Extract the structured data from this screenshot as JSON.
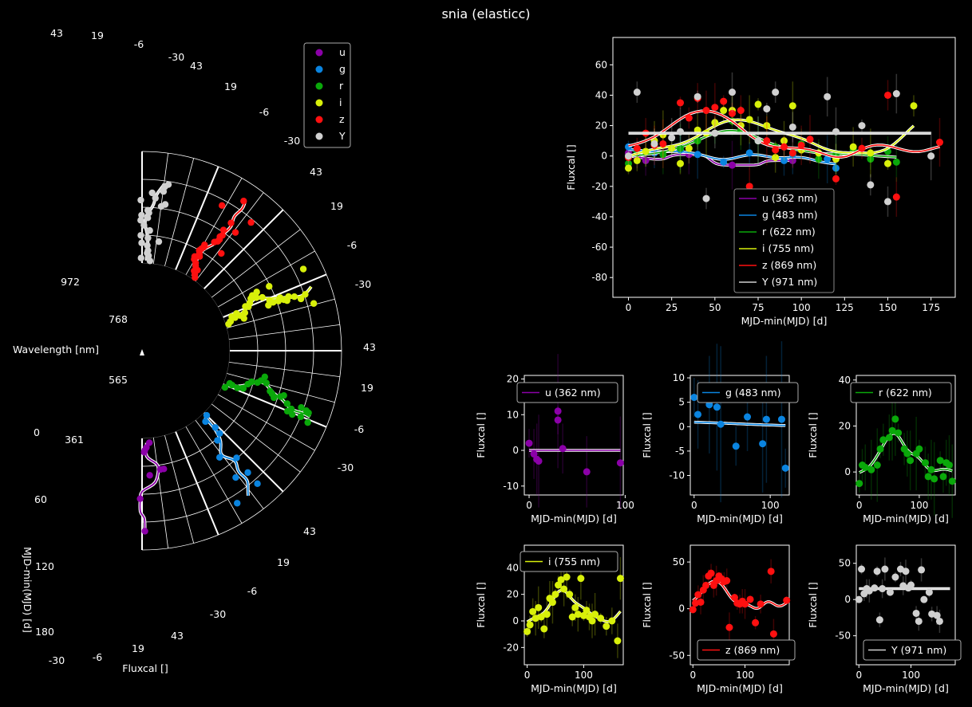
{
  "title": "snia (elasticc)",
  "colors": {
    "u": "#8b00a8",
    "g": "#0a84e0",
    "r": "#0aa80a",
    "i": "#d8f00a",
    "z": "#ff1010",
    "Y": "#d0d0d0"
  },
  "polar": {
    "band_center_labels": [
      "361",
      "565",
      "768",
      "972"
    ],
    "wavelength_label": "Wavelength [nm]",
    "time_label": "MJD-min(MJD) [d]",
    "time_ticks": [
      "0",
      "60",
      "120",
      "180"
    ],
    "flux_label": "Fluxcal []",
    "flux_ticks": [
      "43",
      "19",
      "-6",
      "-30"
    ],
    "legend": [
      "u",
      "g",
      "r",
      "i",
      "z",
      "Y"
    ]
  },
  "chart_data": [
    {
      "type": "scatter",
      "name": "combined",
      "xlabel": "MJD-min(MJD) [d]",
      "ylabel": "Fluxcal []",
      "xlim": [
        -9,
        189
      ],
      "ylim": [
        -93,
        78
      ],
      "xticks": [
        0,
        25,
        50,
        75,
        100,
        125,
        150,
        175
      ],
      "yticks": [
        -80,
        -60,
        -40,
        -20,
        0,
        20,
        40,
        60
      ],
      "legend": [
        "u (362 nm)",
        "g (483 nm)",
        "r (622 nm)",
        "i (755 nm)",
        "z (869 nm)",
        "Y (971 nm)"
      ],
      "series": [
        {
          "band": "u",
          "x": [
            0,
            5,
            10,
            35,
            60,
            95
          ],
          "y": [
            2,
            -1,
            -3,
            1,
            -6,
            -3
          ]
        },
        {
          "band": "g",
          "x": [
            0,
            5,
            15,
            30,
            40,
            55,
            70,
            90,
            95,
            115,
            120
          ],
          "y": [
            6,
            3,
            2,
            4,
            1,
            -4,
            2,
            -3,
            1,
            -2,
            -8
          ]
        },
        {
          "band": "r",
          "x": [
            0,
            5,
            10,
            20,
            30,
            40,
            50,
            60,
            65,
            75,
            85,
            95,
            100,
            110,
            120,
            130,
            140,
            150,
            155
          ],
          "y": [
            -5,
            2,
            3,
            1,
            5,
            10,
            15,
            23,
            17,
            10,
            6,
            2,
            8,
            -2,
            1,
            4,
            -2,
            3,
            -4
          ]
        },
        {
          "band": "i",
          "x": [
            0,
            5,
            10,
            15,
            20,
            25,
            30,
            35,
            40,
            45,
            50,
            55,
            60,
            65,
            70,
            75,
            80,
            85,
            90,
            95,
            100,
            110,
            120,
            130,
            140,
            150,
            165
          ],
          "y": [
            -8,
            -3,
            3,
            10,
            14,
            5,
            -5,
            5,
            17,
            15,
            22,
            30,
            30,
            20,
            24,
            34,
            20,
            -1,
            10,
            33,
            4,
            2,
            -2,
            6,
            2,
            -5,
            33
          ]
        },
        {
          "band": "z",
          "x": [
            0,
            5,
            10,
            15,
            20,
            30,
            35,
            40,
            45,
            50,
            55,
            60,
            65,
            70,
            80,
            85,
            90,
            95,
            100,
            105,
            120,
            135,
            150,
            155,
            180
          ],
          "y": [
            -1,
            5,
            15,
            7,
            8,
            35,
            25,
            38,
            30,
            32,
            36,
            28,
            30,
            -20,
            10,
            4,
            6,
            2,
            7,
            11,
            -15,
            5,
            40,
            -27,
            9
          ]
        },
        {
          "band": "Y",
          "x": [
            0,
            5,
            15,
            25,
            30,
            40,
            45,
            50,
            60,
            75,
            80,
            85,
            95,
            115,
            120,
            135,
            140,
            150,
            155,
            175
          ],
          "y": [
            0,
            42,
            8,
            12,
            16,
            39,
            -28,
            15,
            42,
            10,
            31,
            42,
            19,
            39,
            16,
            20,
            -19,
            -30,
            41,
            0
          ]
        }
      ]
    },
    {
      "type": "scatter",
      "band": "u",
      "legend": "u (362 nm)",
      "xlabel": "MJD-min(MJD) [d]",
      "ylabel": "Fluxcal []",
      "xlim": [
        -5,
        98
      ],
      "ylim": [
        -12.5,
        21
      ],
      "xticks": [
        0,
        100
      ],
      "yticks": [
        -10,
        0,
        10,
        20
      ],
      "x": [
        0,
        5,
        8,
        10,
        30,
        30,
        35,
        60,
        95
      ],
      "y": [
        2,
        -1,
        -2.5,
        -3,
        11,
        8.5,
        0.5,
        -6,
        -3.5
      ]
    },
    {
      "type": "scatter",
      "band": "g",
      "legend": "g (483 nm)",
      "xlabel": "MJD-min(MJD) [d]",
      "ylabel": "Fluxcal []",
      "xlim": [
        -5,
        125
      ],
      "ylim": [
        -14,
        10.5
      ],
      "xticks": [
        0,
        100
      ],
      "yticks": [
        -10,
        -5,
        0,
        5,
        10
      ],
      "x": [
        0,
        5,
        20,
        30,
        35,
        55,
        70,
        90,
        95,
        115,
        120
      ],
      "y": [
        6,
        2.5,
        4.5,
        4,
        0.5,
        -4,
        2,
        -3.5,
        1.5,
        1.5,
        -8.5
      ]
    },
    {
      "type": "scatter",
      "band": "r",
      "legend": "r (622 nm)",
      "xlabel": "MJD-min(MJD) [d]",
      "ylabel": "Fluxcal []",
      "xlim": [
        -5,
        160
      ],
      "ylim": [
        -10,
        42
      ],
      "xticks": [
        0,
        100
      ],
      "yticks": [
        0,
        20,
        40
      ],
      "x": [
        0,
        5,
        10,
        20,
        30,
        35,
        40,
        50,
        55,
        60,
        65,
        75,
        80,
        85,
        95,
        100,
        110,
        115,
        120,
        125,
        135,
        140,
        145,
        150,
        155
      ],
      "y": [
        -5,
        3,
        2,
        1,
        3,
        10,
        14,
        15,
        18,
        23,
        17,
        10,
        8,
        5,
        8,
        10,
        4,
        -2,
        1,
        -3,
        5,
        -2,
        4,
        3,
        -4
      ]
    },
    {
      "type": "scatter",
      "band": "i",
      "legend": "i (755 nm)",
      "xlabel": "MJD-min(MJD) [d]",
      "ylabel": "Fluxcal []",
      "xlim": [
        -5,
        170
      ],
      "ylim": [
        -33,
        57
      ],
      "xticks": [
        0,
        100
      ],
      "yticks": [
        -20,
        0,
        20,
        40
      ],
      "x": [
        0,
        5,
        10,
        15,
        20,
        25,
        30,
        35,
        40,
        45,
        50,
        55,
        60,
        65,
        70,
        75,
        80,
        85,
        90,
        95,
        100,
        105,
        110,
        115,
        120,
        130,
        140,
        150,
        160,
        165
      ],
      "y": [
        -8,
        -3,
        7,
        2,
        10,
        3,
        -6,
        5,
        17,
        14,
        20,
        27,
        31,
        24,
        33,
        20,
        3,
        10,
        5,
        32,
        4,
        8,
        3,
        0,
        5,
        2,
        -4,
        0,
        -15,
        32
      ]
    },
    {
      "type": "scatter",
      "band": "z",
      "legend": "z (869 nm)",
      "xlabel": "MJD-min(MJD) [d]",
      "ylabel": "Fluxcal []",
      "xlim": [
        -5,
        185
      ],
      "ylim": [
        -60,
        68
      ],
      "xticks": [
        0,
        100
      ],
      "yticks": [
        -50,
        0,
        50
      ],
      "x": [
        0,
        5,
        10,
        15,
        20,
        25,
        30,
        35,
        40,
        45,
        50,
        55,
        60,
        65,
        70,
        80,
        85,
        90,
        95,
        100,
        110,
        120,
        130,
        150,
        155,
        180
      ],
      "y": [
        -1,
        6,
        15,
        7,
        20,
        25,
        35,
        38,
        25,
        30,
        35,
        32,
        29,
        30,
        -20,
        12,
        6,
        5,
        8,
        5,
        10,
        -15,
        5,
        40,
        -27,
        9
      ]
    },
    {
      "type": "scatter",
      "band": "Y",
      "legend": "Y (971 nm)",
      "xlabel": "MJD-min(MJD) [d]",
      "ylabel": "Fluxcal []",
      "xlim": [
        -5,
        185
      ],
      "ylim": [
        -90,
        75
      ],
      "xticks": [
        0,
        100
      ],
      "yticks": [
        -50,
        0,
        50
      ],
      "x": [
        0,
        5,
        10,
        15,
        20,
        30,
        35,
        40,
        45,
        50,
        60,
        70,
        80,
        85,
        90,
        95,
        100,
        110,
        115,
        120,
        125,
        135,
        140,
        150,
        155
      ],
      "y": [
        0,
        42,
        8,
        15,
        12,
        16,
        39,
        -28,
        15,
        42,
        10,
        31,
        42,
        19,
        39,
        16,
        20,
        -19,
        -30,
        41,
        0,
        10,
        -20,
        -22,
        -30
      ]
    }
  ]
}
